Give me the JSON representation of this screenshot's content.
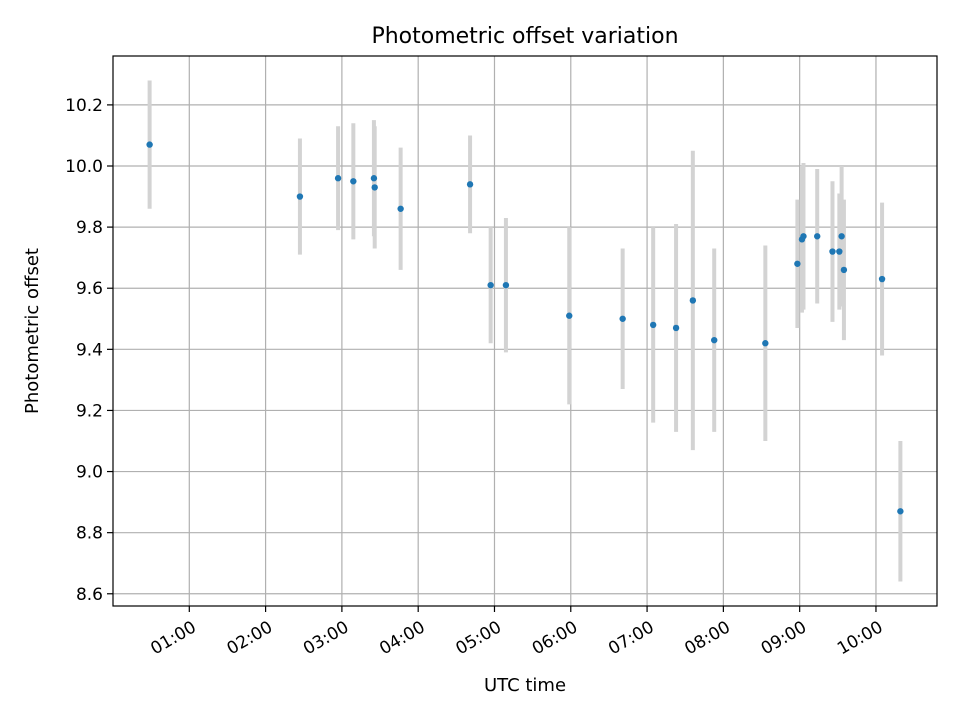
{
  "chart_data": {
    "type": "scatter",
    "title": "Photometric offset variation",
    "xlabel": "UTC time",
    "ylabel": "Photometric offset",
    "grid": true,
    "x_unit": "hours UTC",
    "xlim": [
      0.0,
      10.8
    ],
    "ylim": [
      8.56,
      10.36
    ],
    "x_ticks": [
      {
        "value": 1,
        "label": "01:00"
      },
      {
        "value": 2,
        "label": "02:00"
      },
      {
        "value": 3,
        "label": "03:00"
      },
      {
        "value": 4,
        "label": "04:00"
      },
      {
        "value": 5,
        "label": "05:00"
      },
      {
        "value": 6,
        "label": "06:00"
      },
      {
        "value": 7,
        "label": "07:00"
      },
      {
        "value": 8,
        "label": "08:00"
      },
      {
        "value": 9,
        "label": "09:00"
      },
      {
        "value": 10,
        "label": "10:00"
      }
    ],
    "y_ticks": [
      {
        "value": 8.6,
        "label": "8.6"
      },
      {
        "value": 8.8,
        "label": "8.8"
      },
      {
        "value": 9.0,
        "label": "9.0"
      },
      {
        "value": 9.2,
        "label": "9.2"
      },
      {
        "value": 9.4,
        "label": "9.4"
      },
      {
        "value": 9.6,
        "label": "9.6"
      },
      {
        "value": 9.8,
        "label": "9.8"
      },
      {
        "value": 10.0,
        "label": "10.0"
      },
      {
        "value": 10.2,
        "label": "10.2"
      }
    ],
    "series": [
      {
        "point_color": "#1f77b4",
        "errorbar_color": "#d3d3d3",
        "points": [
          {
            "x": 0.48,
            "y": 10.07,
            "err": 0.21
          },
          {
            "x": 2.45,
            "y": 9.9,
            "err": 0.19
          },
          {
            "x": 2.95,
            "y": 9.96,
            "err": 0.17
          },
          {
            "x": 3.15,
            "y": 9.95,
            "err": 0.19
          },
          {
            "x": 3.42,
            "y": 9.96,
            "err": 0.19
          },
          {
            "x": 3.43,
            "y": 9.93,
            "err": 0.2
          },
          {
            "x": 3.77,
            "y": 9.86,
            "err": 0.2
          },
          {
            "x": 4.68,
            "y": 9.94,
            "err": 0.16
          },
          {
            "x": 4.95,
            "y": 9.61,
            "err": 0.19
          },
          {
            "x": 5.15,
            "y": 9.61,
            "err": 0.22
          },
          {
            "x": 5.98,
            "y": 9.51,
            "err": 0.29
          },
          {
            "x": 6.68,
            "y": 9.5,
            "err": 0.23
          },
          {
            "x": 7.08,
            "y": 9.48,
            "err": 0.32
          },
          {
            "x": 7.38,
            "y": 9.47,
            "err": 0.34
          },
          {
            "x": 7.6,
            "y": 9.56,
            "err": 0.49
          },
          {
            "x": 7.88,
            "y": 9.43,
            "err": 0.3
          },
          {
            "x": 8.55,
            "y": 9.42,
            "err": 0.32
          },
          {
            "x": 8.97,
            "y": 9.68,
            "err": 0.21
          },
          {
            "x": 9.03,
            "y": 9.76,
            "err": 0.24
          },
          {
            "x": 9.05,
            "y": 9.77,
            "err": 0.24
          },
          {
            "x": 9.23,
            "y": 9.77,
            "err": 0.22
          },
          {
            "x": 9.43,
            "y": 9.72,
            "err": 0.23
          },
          {
            "x": 9.52,
            "y": 9.72,
            "err": 0.19
          },
          {
            "x": 9.55,
            "y": 9.77,
            "err": 0.23
          },
          {
            "x": 9.58,
            "y": 9.66,
            "err": 0.23
          },
          {
            "x": 10.08,
            "y": 9.63,
            "err": 0.25
          },
          {
            "x": 10.32,
            "y": 8.87,
            "err": 0.23
          }
        ]
      }
    ]
  }
}
